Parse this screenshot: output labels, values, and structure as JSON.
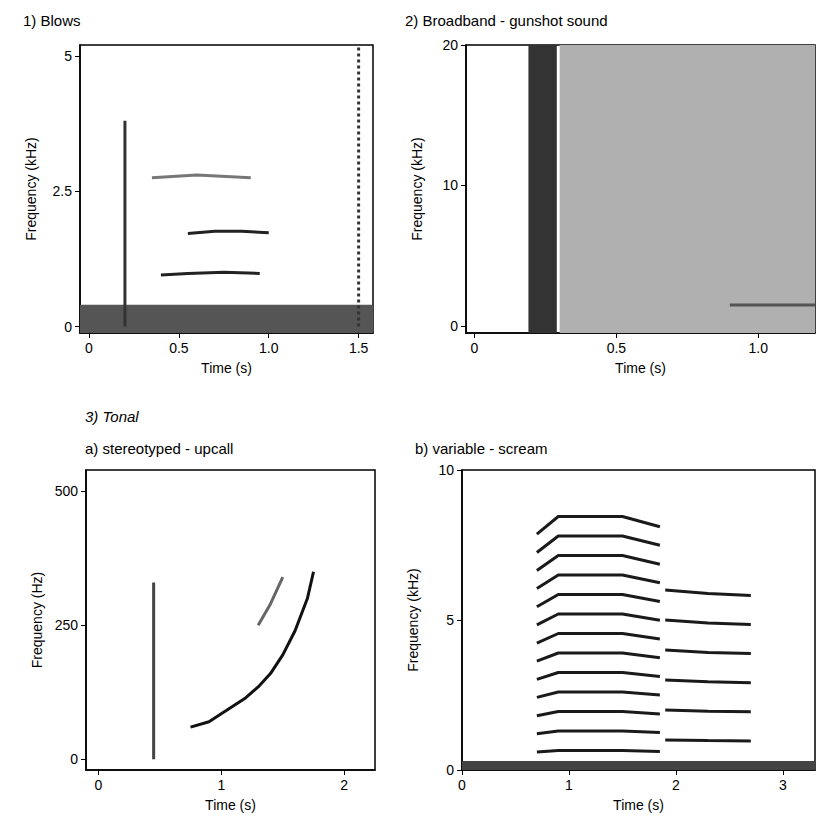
{
  "chart_data": [
    {
      "type": "line",
      "title": "1) Blows",
      "xlabel": "Time (s)",
      "ylabel": "Frequency (kHz)",
      "xlim": [
        -0.05,
        1.58
      ],
      "ylim": [
        -0.12,
        5.2
      ],
      "xticks": [
        0,
        0.5,
        {
          "value": 1,
          "label": "1.0"
        },
        1.5
      ],
      "yticks": [
        0,
        2.5,
        5
      ],
      "grid": false,
      "color": "#1a1a1a",
      "series": [
        {
          "type": "area",
          "color": "#555555",
          "x": [
            -0.05,
            1.58
          ],
          "values": [
            0.4,
            0.4
          ]
        },
        {
          "color": "#222222",
          "x": [
            0.4,
            0.55,
            0.75,
            0.95
          ],
          "values": [
            0.95,
            0.98,
            1.0,
            0.98
          ]
        },
        {
          "color": "#222222",
          "x": [
            0.55,
            0.7,
            0.85,
            1.0
          ],
          "values": [
            1.72,
            1.76,
            1.76,
            1.73
          ]
        },
        {
          "color": "#777777",
          "x": [
            0.35,
            0.6,
            0.9
          ],
          "values": [
            2.75,
            2.8,
            2.75
          ]
        },
        {
          "color": "#333333",
          "x": [
            0.2,
            0.2
          ],
          "values": [
            0,
            3.8
          ]
        },
        {
          "color": "#333333",
          "line_style": "dotted",
          "x": [
            1.5,
            1.5
          ],
          "values": [
            0,
            5.2
          ]
        }
      ]
    },
    {
      "type": "line",
      "title": "2) Broadband - gunshot sound",
      "xlabel": "Time (s)",
      "ylabel": "Frequency (kHz)",
      "xlim": [
        -0.03,
        1.2
      ],
      "ylim": [
        -0.5,
        20
      ],
      "xticks": [
        0,
        0.5,
        {
          "value": 1,
          "label": "1.0"
        }
      ],
      "yticks": [
        0,
        10,
        20
      ],
      "grid": false,
      "color": "#1a1a1a",
      "series": [
        {
          "type": "area",
          "color": "#b0b0b0",
          "x": [
            0.3,
            1.2
          ],
          "values": [
            20,
            20
          ]
        },
        {
          "type": "area",
          "color": "#333333",
          "x": [
            0.19,
            0.29
          ],
          "values": [
            20,
            20
          ]
        },
        {
          "color": "#555555",
          "x": [
            0.9,
            1.2
          ],
          "values": [
            1.5,
            1.5
          ]
        }
      ]
    },
    {
      "type": "line",
      "title": "a) stereotyped - upcall",
      "annotation": "3) Tonal",
      "xlabel": "Time (s)",
      "ylabel": "Frequency (Hz)",
      "xlim": [
        -0.1,
        2.25
      ],
      "ylim": [
        -20,
        540
      ],
      "xticks": [
        0,
        1,
        2
      ],
      "yticks": [
        0,
        250,
        500
      ],
      "grid": false,
      "color": "#1a1a1a",
      "series": [
        {
          "color": "#111111",
          "x": [
            0.75,
            0.9,
            1.0,
            1.1,
            1.2,
            1.3,
            1.4,
            1.5,
            1.6,
            1.7,
            1.75
          ],
          "values": [
            60,
            70,
            85,
            100,
            115,
            135,
            160,
            195,
            240,
            300,
            350
          ]
        },
        {
          "color": "#444444",
          "x": [
            0.45,
            0.45
          ],
          "values": [
            0,
            330
          ]
        },
        {
          "color": "#666666",
          "x": [
            1.3,
            1.4,
            1.5
          ],
          "values": [
            250,
            290,
            340
          ]
        }
      ]
    },
    {
      "type": "line",
      "title": "b) variable - scream",
      "xlabel": "Time (s)",
      "ylabel": "Frequency (kHz)",
      "xlim": [
        0,
        3.3
      ],
      "ylim": [
        0,
        10
      ],
      "xticks": [
        0,
        1,
        2,
        3
      ],
      "yticks": [
        0,
        5,
        10
      ],
      "grid": false,
      "color": "#1a1a1a",
      "series": [
        {
          "type": "area",
          "color": "#444444",
          "x": [
            0,
            3.3
          ],
          "values": [
            0.3,
            0.3
          ]
        },
        {
          "x": [
            0.7,
            0.9,
            1.5,
            1.85
          ],
          "values": [
            0.6,
            0.65,
            0.65,
            0.62
          ]
        },
        {
          "x": [
            0.7,
            0.9,
            1.5,
            1.85
          ],
          "values": [
            1.21,
            1.3,
            1.3,
            1.25
          ]
        },
        {
          "x": [
            0.7,
            0.9,
            1.5,
            1.85
          ],
          "values": [
            1.81,
            1.95,
            1.95,
            1.87
          ]
        },
        {
          "x": [
            0.7,
            0.9,
            1.5,
            1.85
          ],
          "values": [
            2.42,
            2.6,
            2.6,
            2.5
          ]
        },
        {
          "x": [
            0.7,
            0.9,
            1.5,
            1.85
          ],
          "values": [
            3.02,
            3.25,
            3.25,
            3.12
          ]
        },
        {
          "x": [
            0.7,
            0.9,
            1.5,
            1.85
          ],
          "values": [
            3.63,
            3.9,
            3.9,
            3.74
          ]
        },
        {
          "x": [
            0.7,
            0.9,
            1.5,
            1.85
          ],
          "values": [
            4.23,
            4.55,
            4.55,
            4.37
          ]
        },
        {
          "x": [
            0.7,
            0.9,
            1.5,
            1.85
          ],
          "values": [
            4.84,
            5.2,
            5.2,
            4.99
          ]
        },
        {
          "x": [
            0.7,
            0.9,
            1.5,
            1.85
          ],
          "values": [
            5.44,
            5.85,
            5.85,
            5.62
          ]
        },
        {
          "x": [
            0.7,
            0.9,
            1.5,
            1.85
          ],
          "values": [
            6.05,
            6.5,
            6.5,
            6.24
          ]
        },
        {
          "x": [
            0.7,
            0.9,
            1.5,
            1.85
          ],
          "values": [
            6.65,
            7.15,
            7.15,
            6.86
          ]
        },
        {
          "x": [
            0.7,
            0.9,
            1.5,
            1.85
          ],
          "values": [
            7.25,
            7.8,
            7.8,
            7.49
          ]
        },
        {
          "x": [
            0.7,
            0.9,
            1.5,
            1.85
          ],
          "values": [
            7.86,
            8.45,
            8.45,
            8.11
          ]
        },
        {
          "x": [
            1.9,
            2.3,
            2.7
          ],
          "values": [
            1.0,
            0.98,
            0.97
          ]
        },
        {
          "x": [
            1.9,
            2.3,
            2.7
          ],
          "values": [
            2.0,
            1.96,
            1.94
          ]
        },
        {
          "x": [
            1.9,
            2.3,
            2.7
          ],
          "values": [
            3.0,
            2.94,
            2.91
          ]
        },
        {
          "x": [
            1.9,
            2.3,
            2.7
          ],
          "values": [
            4.0,
            3.92,
            3.88
          ]
        },
        {
          "x": [
            1.9,
            2.3,
            2.7
          ],
          "values": [
            5.0,
            4.9,
            4.85
          ]
        },
        {
          "x": [
            1.9,
            2.3,
            2.7
          ],
          "values": [
            6.0,
            5.88,
            5.82
          ]
        }
      ]
    }
  ]
}
